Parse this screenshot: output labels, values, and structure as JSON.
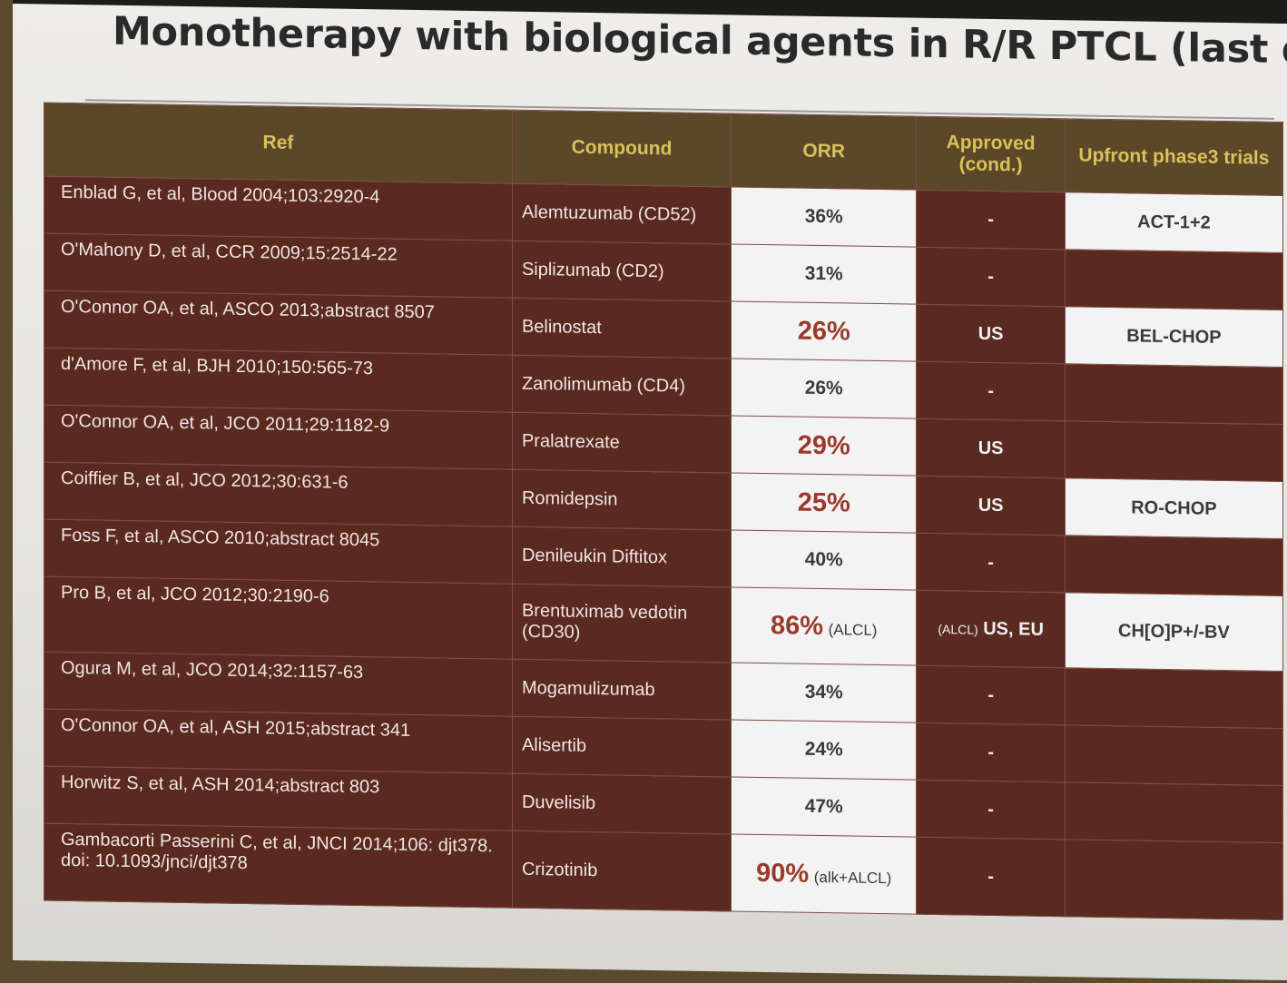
{
  "title": "Monotherapy with biological agents in R/R PTCL (last decade)",
  "headers": [
    "Ref",
    "Compound",
    "ORR",
    "Approved (cond.)",
    "Upfront phase3 trials"
  ],
  "rows": [
    {
      "ref": "Enblad G, et al, Blood 2004;103:2920-4",
      "compound": "Alemtuzumab (CD52)",
      "orr": "36%",
      "orr_note": "",
      "orr_highlight": false,
      "approved": "-",
      "approved_note": "",
      "trial": "ACT-1+2"
    },
    {
      "ref": "O'Mahony D, et al, CCR 2009;15:2514-22",
      "compound": "Siplizumab (CD2)",
      "orr": "31%",
      "orr_note": "",
      "orr_highlight": false,
      "approved": "-",
      "approved_note": "",
      "trial": ""
    },
    {
      "ref": "O'Connor OA, et al, ASCO 2013;abstract 8507",
      "compound": "Belinostat",
      "orr": "26%",
      "orr_note": "",
      "orr_highlight": true,
      "approved": "US",
      "approved_note": "",
      "trial": "BEL-CHOP"
    },
    {
      "ref": "d'Amore F, et al, BJH 2010;150:565-73",
      "compound": "Zanolimumab (CD4)",
      "orr": "26%",
      "orr_note": "",
      "orr_highlight": false,
      "approved": "-",
      "approved_note": "",
      "trial": ""
    },
    {
      "ref": "O'Connor OA, et al, JCO 2011;29:1182-9",
      "compound": "Pralatrexate",
      "orr": "29%",
      "orr_note": "",
      "orr_highlight": true,
      "approved": "US",
      "approved_note": "",
      "trial": ""
    },
    {
      "ref": "Coiffier B, et al, JCO 2012;30:631-6",
      "compound": "Romidepsin",
      "orr": "25%",
      "orr_note": "",
      "orr_highlight": true,
      "approved": "US",
      "approved_note": "",
      "trial": "RO-CHOP"
    },
    {
      "ref": "Foss F, et al, ASCO 2010;abstract 8045",
      "compound": "Denileukin Diftitox",
      "orr": "40%",
      "orr_note": "",
      "orr_highlight": false,
      "approved": "-",
      "approved_note": "",
      "trial": ""
    },
    {
      "ref": "Pro B, et al, JCO 2012;30:2190-6",
      "compound": "Brentuximab vedotin (CD30)",
      "orr": "86%",
      "orr_note": "(ALCL)",
      "orr_highlight": true,
      "approved": "US, EU",
      "approved_note": "(ALCL)",
      "trial": "CH[O]P+/-BV"
    },
    {
      "ref": "Ogura M, et al, JCO 2014;32:1157-63",
      "compound": "Mogamulizumab",
      "orr": "34%",
      "orr_note": "",
      "orr_highlight": false,
      "approved": "-",
      "approved_note": "",
      "trial": ""
    },
    {
      "ref": "O'Connor OA, et al, ASH 2015;abstract 341",
      "compound": "Alisertib",
      "orr": "24%",
      "orr_note": "",
      "orr_highlight": false,
      "approved": "-",
      "approved_note": "",
      "trial": ""
    },
    {
      "ref": "Horwitz S, et al, ASH 2014;abstract 803",
      "compound": "Duvelisib",
      "orr": "47%",
      "orr_note": "",
      "orr_highlight": false,
      "approved": "-",
      "approved_note": "",
      "trial": ""
    },
    {
      "ref": "Gambacorti Passerini C, et al, JNCI 2014;106: djt378. doi: 10.1093/jnci/djt378",
      "compound": "Crizotinib",
      "orr": "90%",
      "orr_note": "(alk+ALCL)",
      "orr_highlight": true,
      "approved": "-",
      "approved_note": "",
      "trial": ""
    }
  ]
}
